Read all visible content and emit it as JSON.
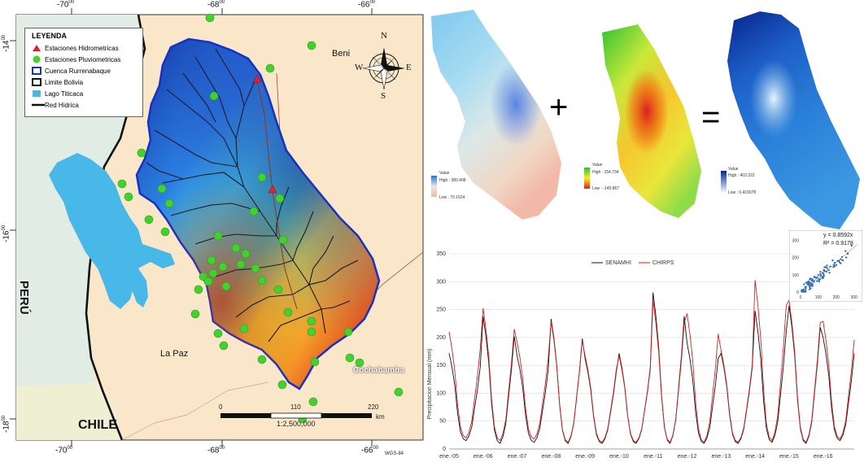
{
  "map": {
    "legend": {
      "title": "LEYENDA",
      "items": [
        {
          "label": "Estaciones Hidrometricas",
          "symbol": "red-triangle"
        },
        {
          "label": "Estaciones Pluviometricas",
          "symbol": "green-circle"
        },
        {
          "label": "Cuenca Rurrenabaque",
          "symbol": "blue-box"
        },
        {
          "label": "Limite Bolivia",
          "symbol": "black-box"
        },
        {
          "label": "Lago Titicaca",
          "symbol": "cyan-box"
        },
        {
          "label": "Red Hidrica",
          "symbol": "black-line"
        }
      ]
    },
    "region_labels": {
      "beni": "Beni",
      "la_paz": "La Paz",
      "cochabamba": "Cochabamba",
      "peru": "PERÚ",
      "chile": "CHILE"
    },
    "lon_ticks": [
      {
        "deg": "-70",
        "sup": "00"
      },
      {
        "deg": "-68",
        "sup": "00"
      },
      {
        "deg": "-66",
        "sup": "00"
      }
    ],
    "lat_ticks": [
      {
        "deg": "-14",
        "sup": "00"
      },
      {
        "deg": "-16",
        "sup": "00"
      },
      {
        "deg": "-18",
        "sup": "00"
      }
    ],
    "datum": "WGS-84",
    "scale": {
      "labels": [
        "0",
        "110",
        "220"
      ],
      "unit": "km",
      "ratio": "1:2,500,000"
    },
    "compass": {
      "n": "N",
      "s": "S",
      "e": "E",
      "w": "W"
    }
  },
  "rasters": [
    {
      "value_title": "Value",
      "high": "High : 380.408",
      "low": "Low : 70.1524",
      "colors": [
        "#2f6fd8",
        "#a8dcf2",
        "#e8d8b8",
        "#f2b8a8"
      ]
    },
    {
      "value_title": "Value",
      "high": "High : 154.734",
      "low": "Low : -145.867",
      "colors": [
        "#2ec234",
        "#f6ee2e",
        "#ee7a14",
        "#dd1f1f"
      ]
    },
    {
      "value_title": "Value",
      "high": "High : 403.322",
      "low": "Low : 0.419078",
      "colors": [
        "#06258c",
        "#1e6fd2",
        "#8cc2ea",
        "#e8f4fb"
      ]
    }
  ],
  "operators": {
    "plus": "+",
    "equals": "="
  },
  "chart_data": {
    "type": "line",
    "ylabel": "Precipitacion Mensual (mm)",
    "xlabel": "",
    "ylim": [
      0,
      350
    ],
    "yticks": [
      0,
      50,
      100,
      150,
      200,
      250,
      300,
      350
    ],
    "xticks": [
      "ene.-05",
      "ene.-06",
      "ene.-07",
      "ene.-08",
      "ene.-09",
      "ene.-10",
      "ene.-11",
      "ene.-12",
      "ene.-13",
      "ene.-14",
      "ene.-15",
      "ene.-16"
    ],
    "legend_position": "top-center",
    "series": [
      {
        "name": "SENAMHI",
        "color": "#111111",
        "peaks": [
          180,
          250,
          175,
          245,
          170,
          180,
          295,
          200,
          180,
          260,
          270,
          210
        ],
        "troughs": [
          15,
          10,
          12,
          10,
          10,
          10,
          10,
          10,
          10,
          12,
          10,
          15
        ]
      },
      {
        "name": "CHIRPS",
        "color": "#d61f1f",
        "peaks": [
          220,
          265,
          200,
          240,
          175,
          175,
          280,
          255,
          185,
          318,
          280,
          240
        ],
        "troughs": [
          20,
          15,
          18,
          12,
          12,
          12,
          12,
          12,
          12,
          15,
          12,
          18
        ]
      }
    ],
    "inset": {
      "type": "scatter",
      "equation": "y = 0.8592x",
      "r2": "R² = 0.9178",
      "xticks": [
        0,
        100,
        200,
        300
      ],
      "yticks": [
        0,
        100,
        200,
        300
      ],
      "xlim": [
        0,
        320
      ],
      "ylim": [
        0,
        320
      ],
      "slope": 0.8592
    }
  }
}
